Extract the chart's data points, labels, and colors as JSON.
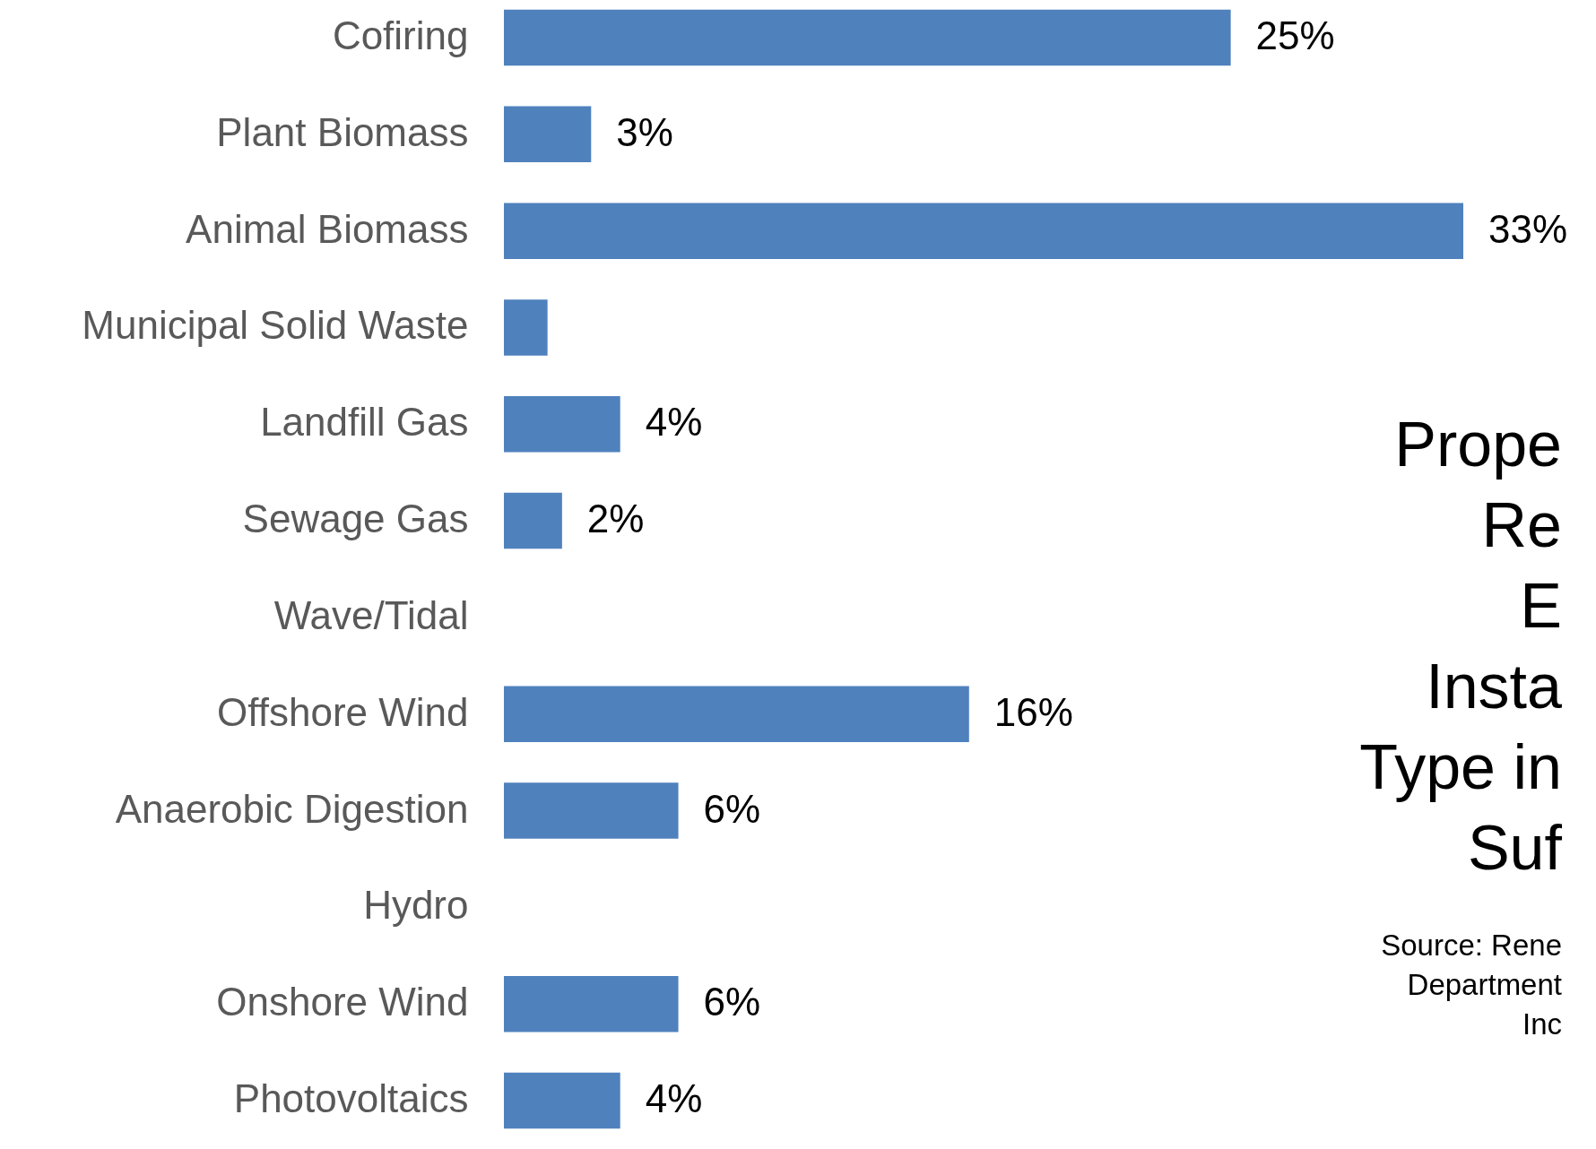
{
  "chart_data": {
    "type": "bar",
    "orientation": "horizontal",
    "title": "Prope\nRe\nE\nInsta\nType in\nSuf",
    "categories": [
      "Cofiring",
      "Plant Biomass",
      "Animal Biomass",
      "Municipal Solid Waste",
      "Landfill Gas",
      "Sewage Gas",
      "Wave/Tidal",
      "Offshore Wind",
      "Anaerobic Digestion",
      "Hydro",
      "Onshore Wind",
      "Photovoltaics"
    ],
    "values": [
      25,
      3,
      33,
      1.5,
      4,
      2,
      0,
      16,
      6,
      0,
      6,
      4
    ],
    "value_labels": [
      "25%",
      "3%",
      "33%",
      null,
      "4%",
      "2%",
      null,
      "16%",
      "6%",
      null,
      "6%",
      "4%"
    ],
    "color": "#4f81bd",
    "annotations": [
      "Source: Rene\nDepartment\nInc"
    ],
    "grid": false
  }
}
